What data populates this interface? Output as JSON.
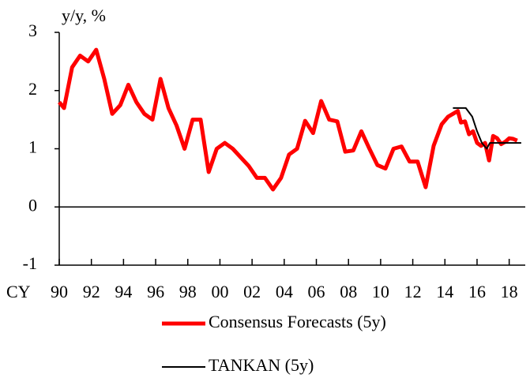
{
  "chart_data": {
    "type": "line",
    "y_label": "y/y, %",
    "x_label": "CY",
    "xlim": [
      1990,
      2019
    ],
    "ylim": [
      -1,
      3
    ],
    "yticks": [
      -1,
      0,
      1,
      2,
      3
    ],
    "xticks": [
      {
        "value": 1990,
        "label": "90"
      },
      {
        "value": 1992,
        "label": "92"
      },
      {
        "value": 1994,
        "label": "94"
      },
      {
        "value": 1996,
        "label": "96"
      },
      {
        "value": 1998,
        "label": "98"
      },
      {
        "value": 2000,
        "label": "00"
      },
      {
        "value": 2002,
        "label": "02"
      },
      {
        "value": 2004,
        "label": "04"
      },
      {
        "value": 2006,
        "label": "06"
      },
      {
        "value": 2008,
        "label": "08"
      },
      {
        "value": 2010,
        "label": "10"
      },
      {
        "value": 2012,
        "label": "12"
      },
      {
        "value": 2014,
        "label": "14"
      },
      {
        "value": 2016,
        "label": "16"
      },
      {
        "value": 2018,
        "label": "18"
      }
    ],
    "grid": false,
    "series": [
      {
        "name": "Consensus Forecasts (5y)",
        "color": "#ff0000",
        "width": 5,
        "x": [
          1990.0,
          1990.3,
          1990.8,
          1991.3,
          1991.8,
          1992.3,
          1992.8,
          1993.3,
          1993.8,
          1994.3,
          1994.8,
          1995.3,
          1995.8,
          1996.3,
          1996.8,
          1997.3,
          1997.8,
          1998.3,
          1998.8,
          1999.3,
          1999.8,
          2000.3,
          2000.8,
          2001.3,
          2001.8,
          2002.3,
          2002.8,
          2003.3,
          2003.8,
          2004.3,
          2004.8,
          2005.3,
          2005.8,
          2006.3,
          2006.8,
          2007.3,
          2007.8,
          2008.3,
          2008.8,
          2009.3,
          2009.8,
          2010.3,
          2010.8,
          2011.3,
          2011.8,
          2012.3,
          2012.8,
          2013.3,
          2013.8,
          2014.2,
          2014.5,
          2014.8,
          2015.0,
          2015.25,
          2015.5,
          2015.75,
          2016.0,
          2016.25,
          2016.5,
          2016.75,
          2017.0,
          2017.25,
          2017.5,
          2017.75,
          2018.0,
          2018.25,
          2018.5
        ],
        "values": [
          1.8,
          1.7,
          2.4,
          2.6,
          2.5,
          2.7,
          2.2,
          1.6,
          1.75,
          2.1,
          1.8,
          1.6,
          1.5,
          2.2,
          1.7,
          1.4,
          1.0,
          1.5,
          1.5,
          0.6,
          1.0,
          1.1,
          1.0,
          0.85,
          0.7,
          0.5,
          0.5,
          0.3,
          0.5,
          0.9,
          1.0,
          1.48,
          1.27,
          1.82,
          1.5,
          1.47,
          0.95,
          0.97,
          1.3,
          1.0,
          0.72,
          0.66,
          1.0,
          1.04,
          0.78,
          0.78,
          0.34,
          1.05,
          1.42,
          1.55,
          1.6,
          1.65,
          1.45,
          1.47,
          1.25,
          1.3,
          1.1,
          1.05,
          1.1,
          0.8,
          1.22,
          1.18,
          1.08,
          1.12,
          1.18,
          1.17,
          1.14
        ]
      },
      {
        "name": "TANKAN (5y)",
        "color": "#000000",
        "width": 2,
        "x": [
          2014.5,
          2015.3,
          2015.7,
          2016.0,
          2016.3,
          2016.6,
          2016.8,
          2018.75
        ],
        "values": [
          1.7,
          1.7,
          1.55,
          1.3,
          1.1,
          1.0,
          1.1,
          1.1
        ]
      }
    ]
  }
}
